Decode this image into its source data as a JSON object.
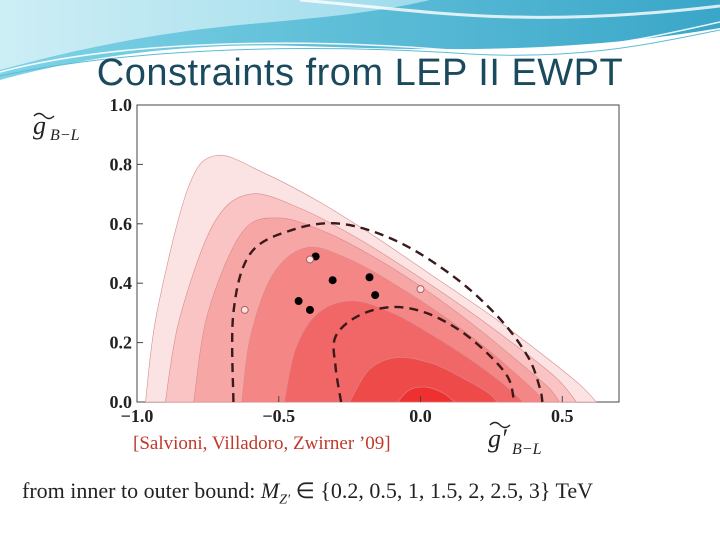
{
  "slide": {
    "title": "Constraints from LEP II EWPT",
    "citation": "[Salvioni, Villadoro, Zwirner ’09]",
    "footer_prefix": "from inner to outer bound: ",
    "footer_symbol": "M",
    "footer_subscript": "Z′",
    "footer_set": " ∈ {0.2, 0.5, 1, 1.5, 2, 2.5, 3} ",
    "footer_unit": "TeV"
  },
  "colors": {
    "title": "#1a4a5e",
    "citation": "#c0392b",
    "contours": [
      "#fce3e3",
      "#fac4c4",
      "#f7a6a6",
      "#f48686",
      "#f16666",
      "#ef4a4a",
      "#ee3030"
    ],
    "dashed": "#3a1a1a",
    "points": "#000000"
  },
  "chart_data": {
    "type": "contour",
    "x_axis_symbol": "g′",
    "x_axis_subscript": "B−L",
    "y_axis_symbol": "g",
    "y_axis_subscript": "B−L",
    "xlim": [
      -1.0,
      0.7
    ],
    "ylim": [
      0.0,
      1.0
    ],
    "xticks": [
      {
        "value": -1.0,
        "label": "−1.0"
      },
      {
        "value": -0.5,
        "label": "−0.5"
      },
      {
        "value": 0.0,
        "label": "0.0"
      },
      {
        "value": 0.5,
        "label": "0.5"
      }
    ],
    "yticks": [
      {
        "value": 0.0,
        "label": "0.0"
      },
      {
        "value": 0.2,
        "label": "0.2"
      },
      {
        "value": 0.4,
        "label": "0.4"
      },
      {
        "value": 0.6,
        "label": "0.6"
      },
      {
        "value": 0.8,
        "label": "0.8"
      },
      {
        "value": 1.0,
        "label": "1.0"
      }
    ],
    "contour_levels_TeV": [
      3,
      2.5,
      2,
      1.5,
      1,
      0.5,
      0.2
    ],
    "contours": [
      {
        "mass_TeV": 3,
        "upper": [
          [
            -0.97,
            0
          ],
          [
            -0.93,
            0.3
          ],
          [
            -0.82,
            0.72
          ],
          [
            -0.72,
            0.83
          ],
          [
            -0.55,
            0.77
          ],
          [
            -0.35,
            0.67
          ],
          [
            -0.15,
            0.55
          ],
          [
            0.05,
            0.42
          ],
          [
            0.25,
            0.29
          ],
          [
            0.43,
            0.16
          ],
          [
            0.56,
            0.06
          ],
          [
            0.62,
            0
          ]
        ]
      },
      {
        "mass_TeV": 2.5,
        "upper": [
          [
            -0.9,
            0
          ],
          [
            -0.85,
            0.28
          ],
          [
            -0.73,
            0.6
          ],
          [
            -0.6,
            0.7
          ],
          [
            -0.42,
            0.65
          ],
          [
            -0.22,
            0.55
          ],
          [
            -0.02,
            0.43
          ],
          [
            0.18,
            0.3
          ],
          [
            0.35,
            0.18
          ],
          [
            0.48,
            0.08
          ],
          [
            0.55,
            0
          ]
        ]
      },
      {
        "mass_TeV": 2,
        "upper": [
          [
            -0.8,
            0
          ],
          [
            -0.75,
            0.3
          ],
          [
            -0.63,
            0.57
          ],
          [
            -0.5,
            0.62
          ],
          [
            -0.33,
            0.57
          ],
          [
            -0.15,
            0.48
          ],
          [
            0.03,
            0.37
          ],
          [
            0.2,
            0.25
          ],
          [
            0.34,
            0.14
          ],
          [
            0.45,
            0.05
          ],
          [
            0.49,
            0
          ]
        ]
      },
      {
        "mass_TeV": 1.5,
        "upper": [
          [
            -0.63,
            0
          ],
          [
            -0.6,
            0.22
          ],
          [
            -0.52,
            0.43
          ],
          [
            -0.4,
            0.52
          ],
          [
            -0.25,
            0.48
          ],
          [
            -0.08,
            0.39
          ],
          [
            0.08,
            0.29
          ],
          [
            0.22,
            0.19
          ],
          [
            0.33,
            0.1
          ],
          [
            0.41,
            0.03
          ],
          [
            0.43,
            0
          ]
        ]
      },
      {
        "mass_TeV": 1,
        "upper": [
          [
            -0.48,
            0
          ],
          [
            -0.44,
            0.18
          ],
          [
            -0.36,
            0.3
          ],
          [
            -0.24,
            0.34
          ],
          [
            -0.1,
            0.3
          ],
          [
            0.05,
            0.22
          ],
          [
            0.18,
            0.14
          ],
          [
            0.28,
            0.07
          ],
          [
            0.34,
            0.02
          ],
          [
            0.36,
            0
          ]
        ]
      },
      {
        "mass_TeV": 0.5,
        "upper": [
          [
            -0.25,
            0
          ],
          [
            -0.18,
            0.11
          ],
          [
            -0.08,
            0.15
          ],
          [
            0.04,
            0.13
          ],
          [
            0.15,
            0.08
          ],
          [
            0.24,
            0.03
          ],
          [
            0.27,
            0
          ]
        ]
      },
      {
        "mass_TeV": 0.2,
        "upper": [
          [
            -0.08,
            0
          ],
          [
            -0.04,
            0.04
          ],
          [
            0.02,
            0.05
          ],
          [
            0.08,
            0.03
          ],
          [
            0.12,
            0
          ]
        ]
      }
    ],
    "dashed_contours": [
      {
        "name": "outer",
        "points": [
          [
            -0.66,
            0
          ],
          [
            -0.66,
            0.3
          ],
          [
            -0.6,
            0.5
          ],
          [
            -0.45,
            0.58
          ],
          [
            -0.28,
            0.6
          ],
          [
            -0.08,
            0.54
          ],
          [
            0.12,
            0.42
          ],
          [
            0.28,
            0.28
          ],
          [
            0.38,
            0.15
          ],
          [
            0.42,
            0.05
          ],
          [
            0.43,
            0
          ]
        ]
      },
      {
        "name": "inner",
        "points": [
          [
            -0.28,
            0
          ],
          [
            -0.3,
            0.12
          ],
          [
            -0.3,
            0.22
          ],
          [
            -0.22,
            0.29
          ],
          [
            -0.1,
            0.32
          ],
          [
            0.02,
            0.3
          ],
          [
            0.14,
            0.24
          ],
          [
            0.24,
            0.16
          ],
          [
            0.31,
            0.08
          ],
          [
            0.33,
            0
          ]
        ]
      }
    ],
    "points_filled": [
      [
        -0.37,
        0.49
      ],
      [
        -0.31,
        0.41
      ],
      [
        -0.18,
        0.42
      ],
      [
        -0.16,
        0.36
      ],
      [
        -0.43,
        0.34
      ],
      [
        -0.39,
        0.31
      ]
    ],
    "points_open": [
      [
        -0.39,
        0.48
      ],
      [
        -0.62,
        0.31
      ],
      [
        0.0,
        0.38
      ]
    ]
  }
}
